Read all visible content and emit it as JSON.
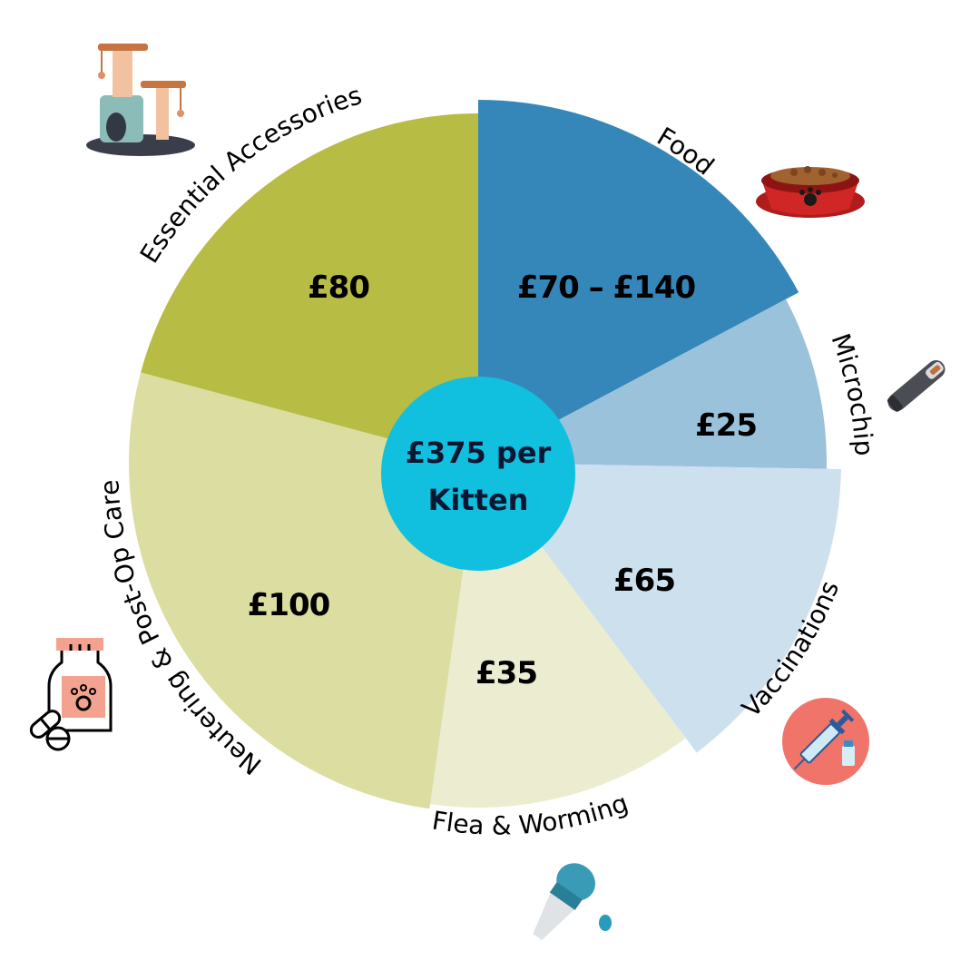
{
  "chart_data": {
    "type": "pie",
    "center_label": [
      "£375 per",
      "Kitten"
    ],
    "slices": [
      {
        "name": "Food",
        "value_label": "£70 – £140",
        "color": "#3587ba",
        "icon": "food-bowl-icon"
      },
      {
        "name": "Microchip",
        "value_label": "£25",
        "color": "#9bc2db",
        "icon": "microchip-syringe-icon"
      },
      {
        "name": "Vaccinations",
        "value_label": "£65",
        "color": "#cde0ed",
        "icon": "vaccine-syringe-icon"
      },
      {
        "name": "Flea & Worming",
        "value_label": "£35",
        "color": "#ecedd0",
        "icon": "dropper-icon"
      },
      {
        "name": "Neutering & Post-Op Care",
        "value_label": "£100",
        "color": "#dbdea0",
        "icon": "medicine-bottle-icon"
      },
      {
        "name": "Essential Accessories",
        "value_label": "£80",
        "color": "#b7bc44",
        "icon": "cat-tree-icon"
      }
    ],
    "center_color": "#11bfdf"
  }
}
